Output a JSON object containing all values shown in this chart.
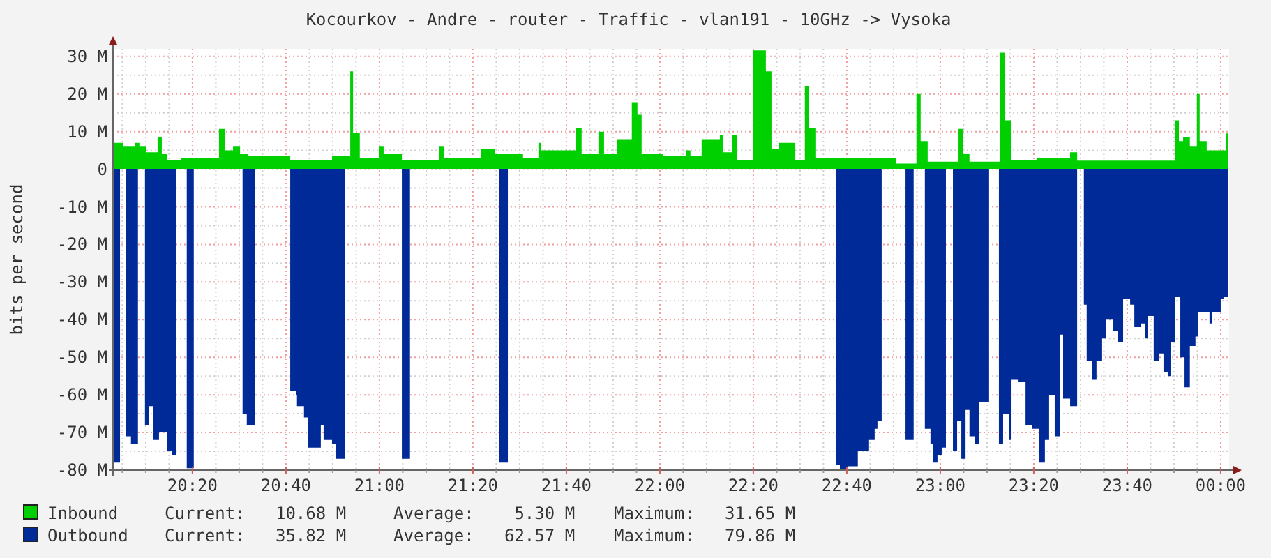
{
  "chart_data": {
    "type": "area",
    "title": "Kocourkov - Andre - router - Traffic - vlan191 - 10GHz -> Vysoka",
    "ylabel": "bits per second",
    "xlim": [
      20.05,
      24.03
    ],
    "ylim": [
      -80,
      32
    ],
    "xticks": [
      {
        "value": 20.0833,
        "label": null
      },
      {
        "value": 20.1667,
        "label": null
      },
      {
        "value": 20.25,
        "label": null
      },
      {
        "value": 20.3333,
        "label": "20:20"
      },
      {
        "value": 20.4167,
        "label": null
      },
      {
        "value": 20.5,
        "label": null
      },
      {
        "value": 20.5833,
        "label": null
      },
      {
        "value": 20.6667,
        "label": "20:40"
      },
      {
        "value": 20.75,
        "label": null
      },
      {
        "value": 20.8333,
        "label": null
      },
      {
        "value": 20.9167,
        "label": null
      },
      {
        "value": 21,
        "label": "21:00"
      },
      {
        "value": 21.0833,
        "label": null
      },
      {
        "value": 21.1667,
        "label": null
      },
      {
        "value": 21.25,
        "label": null
      },
      {
        "value": 21.3333,
        "label": "21:20"
      },
      {
        "value": 21.4167,
        "label": null
      },
      {
        "value": 21.5,
        "label": null
      },
      {
        "value": 21.5833,
        "label": null
      },
      {
        "value": 21.6667,
        "label": "21:40"
      },
      {
        "value": 21.75,
        "label": null
      },
      {
        "value": 21.8333,
        "label": null
      },
      {
        "value": 21.9167,
        "label": null
      },
      {
        "value": 22,
        "label": "22:00"
      },
      {
        "value": 22.0833,
        "label": null
      },
      {
        "value": 22.1667,
        "label": null
      },
      {
        "value": 22.25,
        "label": null
      },
      {
        "value": 22.3333,
        "label": "22:20"
      },
      {
        "value": 22.4167,
        "label": null
      },
      {
        "value": 22.5,
        "label": null
      },
      {
        "value": 22.5833,
        "label": null
      },
      {
        "value": 22.6667,
        "label": "22:40"
      },
      {
        "value": 22.75,
        "label": null
      },
      {
        "value": 22.8333,
        "label": null
      },
      {
        "value": 22.9167,
        "label": null
      },
      {
        "value": 23,
        "label": "23:00"
      },
      {
        "value": 23.0833,
        "label": null
      },
      {
        "value": 23.1667,
        "label": null
      },
      {
        "value": 23.25,
        "label": null
      },
      {
        "value": 23.3333,
        "label": "23:20"
      },
      {
        "value": 23.4167,
        "label": null
      },
      {
        "value": 23.5,
        "label": null
      },
      {
        "value": 23.5833,
        "label": null
      },
      {
        "value": 23.6667,
        "label": "23:40"
      },
      {
        "value": 23.75,
        "label": null
      },
      {
        "value": 23.8333,
        "label": null
      },
      {
        "value": 23.9167,
        "label": null
      },
      {
        "value": 24,
        "label": "00:00"
      }
    ],
    "yticks": [
      {
        "value": -80,
        "label": "-80 M"
      },
      {
        "value": -75,
        "label": null
      },
      {
        "value": -70,
        "label": "-70 M"
      },
      {
        "value": -65,
        "label": null
      },
      {
        "value": -60,
        "label": "-60 M"
      },
      {
        "value": -55,
        "label": null
      },
      {
        "value": -50,
        "label": "-50 M"
      },
      {
        "value": -45,
        "label": null
      },
      {
        "value": -40,
        "label": "-40 M"
      },
      {
        "value": -35,
        "label": null
      },
      {
        "value": -30,
        "label": "-30 M"
      },
      {
        "value": -25,
        "label": null
      },
      {
        "value": -20,
        "label": "-20 M"
      },
      {
        "value": -15,
        "label": null
      },
      {
        "value": -10,
        "label": "-10 M"
      },
      {
        "value": -5,
        "label": null
      },
      {
        "value": 0,
        "label": "0"
      },
      {
        "value": 5,
        "label": null
      },
      {
        "value": 10,
        "label": "10 M"
      },
      {
        "value": 15,
        "label": null
      },
      {
        "value": 20,
        "label": "20 M"
      },
      {
        "value": 25,
        "label": null
      },
      {
        "value": 30,
        "label": "30 M"
      }
    ],
    "grid": true,
    "legend": "bottom",
    "series": [
      {
        "name": "Inbound",
        "color": "#00cf00",
        "x": [
          20.05,
          20.085,
          20.129,
          20.144,
          20.169,
          20.209,
          20.224,
          20.244,
          20.294,
          20.428,
          20.448,
          20.478,
          20.503,
          20.532,
          20.682,
          20.831,
          20.896,
          20.906,
          20.93,
          21.0,
          21.015,
          21.08,
          21.214,
          21.229,
          21.363,
          21.413,
          21.512,
          21.567,
          21.577,
          21.701,
          21.721,
          21.781,
          21.801,
          21.846,
          21.9,
          21.92,
          21.935,
          22.01,
          22.094,
          22.109,
          22.149,
          22.214,
          22.226,
          22.258,
          22.274,
          22.333,
          22.378,
          22.398,
          22.423,
          22.483,
          22.517,
          22.532,
          22.557,
          22.841,
          22.915,
          22.93,
          22.955,
          23.065,
          23.08,
          23.104,
          23.214,
          23.229,
          23.254,
          23.343,
          23.463,
          23.488,
          23.836,
          23.851,
          23.866,
          23.89,
          23.915,
          23.925,
          23.95,
          24.02,
          24.025
        ],
        "values": [
          7,
          6,
          7,
          6,
          4.5,
          8.5,
          4,
          2.5,
          3,
          10.7,
          5,
          6,
          4,
          3.5,
          2.5,
          3.5,
          26,
          9.7,
          3,
          6,
          4,
          2.5,
          6,
          3,
          5.5,
          4,
          3,
          7,
          5,
          11,
          4,
          10,
          4,
          8,
          17.8,
          14.5,
          4,
          3.5,
          5,
          3.5,
          8,
          9,
          4.5,
          9,
          2.5,
          31.6,
          26,
          5.5,
          7,
          2.5,
          22,
          11,
          3,
          1.5,
          20,
          7.5,
          2,
          10.7,
          4,
          2,
          31,
          13,
          2.5,
          3,
          4.5,
          2.3,
          13,
          7.5,
          8.5,
          6,
          20,
          7.5,
          5,
          9.5,
          10.7
        ]
      },
      {
        "name": "Outbound",
        "color": "#002a97",
        "x": [
          20.05,
          20.075,
          20.085,
          20.095,
          20.114,
          20.139,
          20.15,
          20.164,
          20.179,
          20.194,
          20.214,
          20.244,
          20.259,
          20.274,
          20.29,
          20.313,
          20.338,
          20.4,
          20.512,
          20.527,
          20.557,
          20.6,
          20.682,
          20.702,
          20.706,
          20.731,
          20.746,
          20.791,
          20.801,
          20.831,
          20.846,
          20.876,
          21.0,
          21.08,
          21.109,
          21.2,
          21.428,
          21.458,
          22.0,
          22.627,
          22.642,
          22.671,
          22.706,
          22.746,
          22.766,
          22.776,
          22.791,
          22.83,
          22.876,
          22.905,
          22.92,
          22.945,
          22.965,
          22.975,
          22.99,
          23.005,
          23.02,
          23.03,
          23.045,
          23.06,
          23.075,
          23.09,
          23.104,
          23.124,
          23.139,
          23.174,
          23.19,
          23.209,
          23.224,
          23.244,
          23.254,
          23.279,
          23.304,
          23.328,
          23.353,
          23.373,
          23.388,
          23.408,
          23.428,
          23.438,
          23.463,
          23.488,
          23.5,
          23.512,
          23.522,
          23.542,
          23.557,
          23.577,
          23.592,
          23.617,
          23.632,
          23.652,
          23.677,
          23.692,
          23.716,
          23.731,
          23.741,
          23.761,
          23.781,
          23.796,
          23.811,
          23.821,
          23.836,
          23.856,
          23.871,
          23.89,
          23.91,
          23.92,
          23.96,
          23.97,
          24.0,
          24.01,
          24.025
        ],
        "values": [
          -78,
          -78,
          null,
          -71,
          -73,
          -73,
          null,
          -68,
          -63,
          -72,
          -70,
          -75,
          -76,
          -76,
          null,
          -79.5,
          -79.5,
          null,
          -65,
          -68,
          -68,
          null,
          -59,
          -60,
          -63,
          -66,
          -74,
          -68,
          -72,
          -73,
          -77,
          -77,
          null,
          -77,
          -77,
          null,
          -78,
          -78,
          null,
          -78.5,
          -79.8,
          -79,
          -75,
          -72,
          -69,
          -67,
          -67,
          null,
          -72,
          -72,
          null,
          -69,
          -73,
          -78,
          -76,
          -74,
          -74,
          null,
          -75,
          -67,
          -77,
          -64,
          -71,
          -73,
          -62,
          -62,
          null,
          -73,
          -65,
          -72,
          -56,
          -56.5,
          -68,
          -69,
          -78,
          -72,
          -60,
          -71,
          -44,
          -61,
          -63,
          -63,
          null,
          -36,
          -51,
          -56,
          -51,
          -45,
          -40,
          -43,
          -46,
          -34.5,
          -36,
          -42,
          -41,
          -45,
          -39,
          -51,
          -49,
          -54,
          -55,
          -46,
          -34,
          -50,
          -58,
          -47,
          -44.5,
          -38,
          -41,
          -38,
          -34.5,
          -34,
          -35.8
        ]
      }
    ],
    "annotations": [
      "Current:   10.68 M",
      "Average:    5.30 M",
      "Maximum:   31.65 M",
      "Current:   35.82 M",
      "Average:   62.57 M",
      "Maximum:   79.86 M"
    ]
  }
}
